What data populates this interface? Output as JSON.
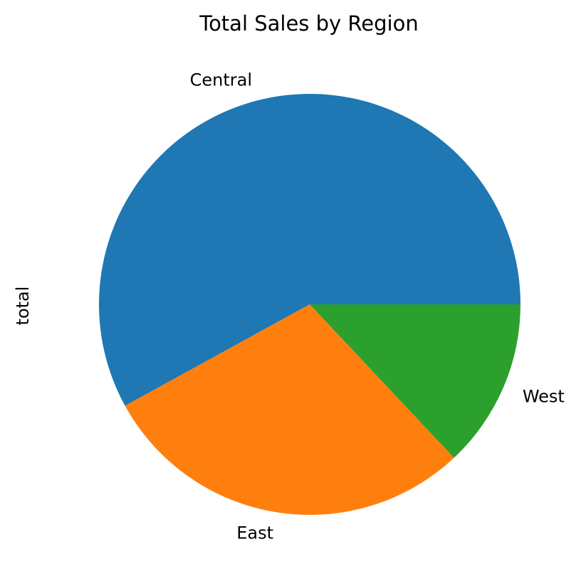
{
  "chart_data": {
    "type": "pie",
    "title": "Total Sales by Region",
    "ylabel": "total",
    "xlabel": "",
    "legend": "none",
    "start_angle": 0,
    "direction": "counterclockwise",
    "slices": [
      {
        "label": "Central",
        "value": 58,
        "color": "#1f77b4"
      },
      {
        "label": "East",
        "value": 29,
        "color": "#ff7f0e"
      },
      {
        "label": "West",
        "value": 13,
        "color": "#2ca02c"
      }
    ]
  }
}
